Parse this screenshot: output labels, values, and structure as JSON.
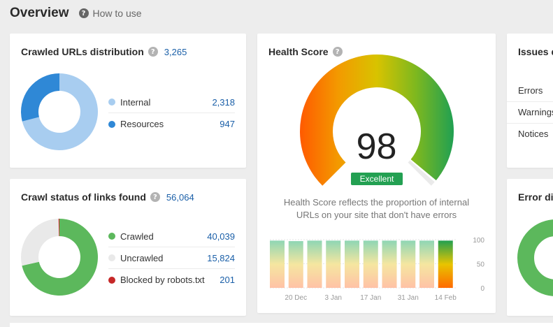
{
  "header": {
    "title": "Overview",
    "help_label": "How to use"
  },
  "crawled_urls": {
    "title": "Crawled URLs distribution",
    "total": "3,265",
    "items": [
      {
        "label": "Internal",
        "value": "2,318",
        "color": "#a8cdf0"
      },
      {
        "label": "Resources",
        "value": "947",
        "color": "#2f88d6"
      }
    ]
  },
  "crawl_status": {
    "title": "Crawl status of links found",
    "total": "56,064",
    "items": [
      {
        "label": "Crawled",
        "value": "40,039",
        "color": "#5cb85c"
      },
      {
        "label": "Uncrawled",
        "value": "15,824",
        "color": "#e9e9e9"
      },
      {
        "label": "Blocked by robots.txt",
        "value": "201",
        "color": "#c62828"
      }
    ]
  },
  "health": {
    "title": "Health Score",
    "score": "98",
    "badge": "Excellent",
    "caption_line1": "Health Score reflects the proportion of internal",
    "caption_line2": "URLs on your site that don't have errors",
    "chart_data": {
      "type": "bar",
      "categories": [
        "",
        "20 Dec",
        "",
        "3 Jan",
        "",
        "17 Jan",
        "",
        "31 Jan",
        "",
        "14 Feb"
      ],
      "x_tick_labels": [
        "20 Dec",
        "3 Jan",
        "17 Jan",
        "31 Jan",
        "14 Feb"
      ],
      "values": [
        98,
        97,
        98,
        98,
        98,
        98,
        98,
        98,
        98,
        98
      ],
      "ylim": [
        0,
        100
      ],
      "y_ticks": [
        "100",
        "50",
        "0"
      ]
    }
  },
  "issues": {
    "title": "Issues d",
    "rows": [
      "Errors",
      "Warnings",
      "Notices"
    ]
  },
  "error_dist": {
    "title": "Error di"
  }
}
